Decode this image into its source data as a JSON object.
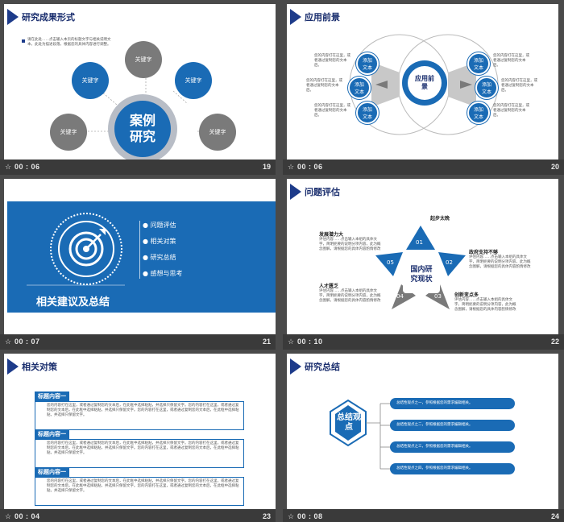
{
  "colors": {
    "primary": "#1a6bb5",
    "dark": "#1d3b8a",
    "grey": "#7a7a7a",
    "bar": "#3a3a3a"
  },
  "slides": [
    {
      "title": "研究成果形式",
      "time": "00 : 06",
      "number": "19",
      "note": "请在此处……点击输入本页的标题文字与相关说明文本，此处为描述段落，根据您的具体内容进行调整。",
      "center": "案例研究",
      "keywords": [
        "关键字",
        "关键字",
        "关键字",
        "关键字",
        "关键字"
      ]
    },
    {
      "title": "应用前景",
      "time": "00 : 06",
      "number": "20",
      "center": "应用前景",
      "add_text": "添加文本",
      "desc": "您的内容打在这里，或者通过复制您的文本后。"
    },
    {
      "title": "相关建议及总结",
      "time": "00 : 07",
      "number": "21",
      "menu": [
        "问题评估",
        "相关对策",
        "研究总结",
        "感想与思考"
      ]
    },
    {
      "title": "问题评估",
      "time": "00 : 10",
      "number": "22",
      "center": "国内研究现状",
      "points": [
        {
          "num": "01",
          "label": "起步太晚"
        },
        {
          "num": "02",
          "label": "政府支持不够"
        },
        {
          "num": "03",
          "label": "创新变点多"
        },
        {
          "num": "04",
          "label": "人才匮乏"
        },
        {
          "num": "05",
          "label": "发展潜力大"
        }
      ],
      "desc": "评估内容……点击输入本组的具体文字，简明扼要的说明分项内容，此为概念图解，请根据您的具体内容酌情修改"
    },
    {
      "title": "相关对策",
      "time": "00 : 04",
      "number": "23",
      "heading": "标题内容一",
      "body": "您的内容打在这里，或者通过复制您的文本后，在此框中选择粘贴，并选择只保留文字。您的内容打在这里，或者通过复制您的文本后，在此框中选择粘贴，并选择只保留文字。您的内容打在这里，或者通过复制您的文本后，在此框中选择粘贴，并选择只保留文字。"
    },
    {
      "title": "研究总结",
      "time": "00 : 08",
      "number": "24",
      "center": "总结观点",
      "items": [
        "总结性观点之一，参照根据您的需求编辑相关。",
        "总结性观点之二，参照根据您的需求编辑相关。",
        "总结性观点之三，参照根据您的需求编辑相关。",
        "总结性观点之四，参照根据您的需求编辑相关。"
      ]
    }
  ]
}
